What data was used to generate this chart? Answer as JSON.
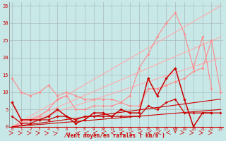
{
  "bg_color": "#c8e8e8",
  "grid_color": "#aabbbb",
  "xlabel": "Vent moyen/en rafales ( km/h )",
  "xlabel_color": "#cc0000",
  "tick_color": "#cc0000",
  "xlim": [
    -0.3,
    23.3
  ],
  "ylim": [
    0,
    36
  ],
  "yticks": [
    0,
    5,
    10,
    15,
    20,
    25,
    30,
    35
  ],
  "xticks": [
    0,
    1,
    2,
    3,
    4,
    5,
    6,
    7,
    8,
    9,
    10,
    11,
    12,
    13,
    14,
    15,
    16,
    17,
    18,
    19,
    20,
    21,
    22,
    23
  ],
  "series": [
    {
      "x": [
        0,
        1,
        2,
        3,
        4,
        5,
        6,
        7,
        8,
        9,
        10,
        11,
        12,
        13,
        14,
        15,
        16,
        17,
        18,
        19,
        20,
        21,
        22
      ],
      "y": [
        14,
        10,
        9,
        10,
        12,
        9,
        10,
        9,
        8,
        8,
        8,
        8,
        7,
        9,
        17,
        21,
        26,
        30,
        33,
        27,
        17,
        26,
        11
      ],
      "color": "#ff8888",
      "lw": 0.8,
      "marker": "D",
      "ms": 2.0,
      "zorder": 3
    },
    {
      "x": [
        0,
        1,
        2,
        3,
        4,
        5,
        6,
        7,
        8,
        9,
        10,
        11,
        12,
        13,
        14,
        15,
        16,
        17,
        18,
        19,
        20,
        21,
        22,
        23
      ],
      "y": [
        7,
        2,
        2,
        3,
        5,
        8,
        9,
        5,
        5,
        6,
        6,
        6,
        7,
        6,
        6,
        11,
        11,
        12,
        13,
        14,
        16,
        17,
        25,
        10
      ],
      "color": "#ff8888",
      "lw": 0.8,
      "marker": "D",
      "ms": 2.0,
      "zorder": 3
    },
    {
      "x": [
        0,
        23
      ],
      "y": [
        0,
        35
      ],
      "color": "#ffaaaa",
      "lw": 0.8,
      "marker": null,
      "ms": 0,
      "zorder": 2
    },
    {
      "x": [
        0,
        23
      ],
      "y": [
        0,
        26
      ],
      "color": "#ffaaaa",
      "lw": 0.8,
      "marker": null,
      "ms": 0,
      "zorder": 2
    },
    {
      "x": [
        0,
        23
      ],
      "y": [
        0,
        20
      ],
      "color": "#ffaaaa",
      "lw": 0.8,
      "marker": null,
      "ms": 0,
      "zorder": 2
    },
    {
      "x": [
        0,
        1,
        2,
        3,
        4,
        5,
        6,
        7,
        8,
        9,
        10,
        11,
        12,
        13,
        14,
        15,
        16,
        17,
        18,
        19,
        20,
        21,
        22
      ],
      "y": [
        7,
        2,
        2,
        2,
        3,
        5,
        3,
        1,
        2,
        4,
        4,
        3,
        5,
        4,
        4,
        14,
        9,
        14,
        17,
        8,
        0,
        4,
        4
      ],
      "color": "#cc0000",
      "lw": 1.1,
      "marker": "D",
      "ms": 2.2,
      "zorder": 4
    },
    {
      "x": [
        0,
        1,
        2,
        3,
        4,
        5,
        6,
        7,
        8,
        9,
        10,
        11,
        12,
        13,
        14,
        15,
        16,
        17,
        18,
        19,
        20,
        21,
        22,
        23
      ],
      "y": [
        3,
        1,
        1,
        2,
        2,
        3,
        3,
        2,
        3,
        3,
        3,
        3,
        3,
        3,
        3,
        6,
        5,
        7,
        8,
        4,
        4,
        4,
        4,
        4
      ],
      "color": "#cc0000",
      "lw": 0.9,
      "marker": "D",
      "ms": 2.0,
      "zorder": 4
    },
    {
      "x": [
        0,
        23
      ],
      "y": [
        0,
        8
      ],
      "color": "#cc0000",
      "lw": 0.8,
      "marker": null,
      "ms": 0,
      "zorder": 2
    },
    {
      "x": [
        0,
        23
      ],
      "y": [
        0,
        5
      ],
      "color": "#cc0000",
      "lw": 0.8,
      "marker": null,
      "ms": 0,
      "zorder": 2
    }
  ]
}
